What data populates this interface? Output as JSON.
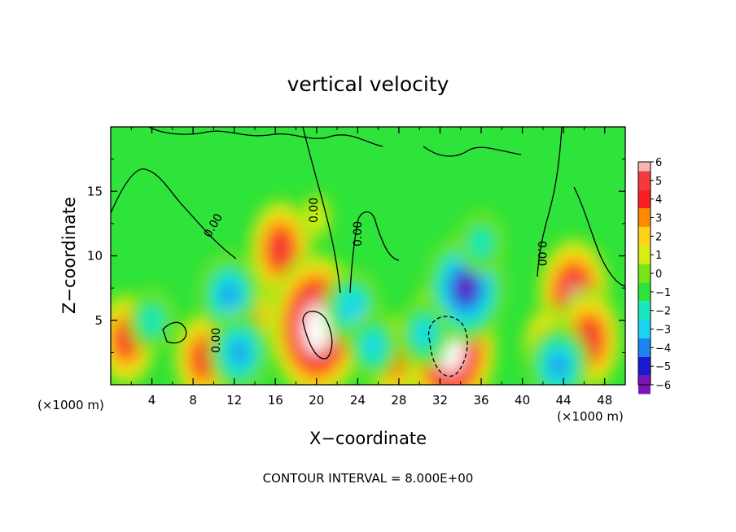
{
  "chart_data": {
    "type": "heatmap",
    "title": "vertical velocity",
    "xlabel": "X−coordinate",
    "ylabel": "Z−coordinate",
    "x_unit_left": "(×1000 m)",
    "x_unit_right": "(×1000 m)",
    "x_ticks": [
      "4",
      "8",
      "12",
      "16",
      "20",
      "24",
      "28",
      "32",
      "36",
      "40",
      "44",
      "48"
    ],
    "y_ticks": [
      "5",
      "10",
      "15"
    ],
    "xlim": [
      0,
      50
    ],
    "ylim": [
      0,
      20
    ],
    "colorbar": {
      "levels": [
        "6",
        "5",
        "4",
        "3",
        "2",
        "1",
        "0",
        "−1",
        "−2",
        "−3",
        "−4",
        "−5",
        "−6"
      ],
      "colors": [
        "#f08a8a",
        "#f43a3a",
        "#fa1e1e",
        "#ff8a00",
        "#ffd21a",
        "#d7ee12",
        "#7ae319",
        "#2ee33a",
        "#17e8c0",
        "#1ad4f2",
        "#1a84f0",
        "#1a1ad0",
        "#7a15b3"
      ],
      "top_color": "#f6b4b4"
    },
    "contour_labels": [
      "0.00",
      "0.00",
      "0.00",
      "0.00",
      "0.00"
    ],
    "field_features": [
      {
        "x": 16.5,
        "z": 10.5,
        "w": 5.5,
        "type": "updraft"
      },
      {
        "x": 20.0,
        "z": 4.5,
        "w": 9.0,
        "type": "updraft"
      },
      {
        "x": 9.0,
        "z": 2.0,
        "w": 5.0,
        "type": "updraft"
      },
      {
        "x": 13.5,
        "z": 5.0,
        "w": 4.5,
        "type": "updraft"
      },
      {
        "x": 1.5,
        "z": 3.5,
        "w": 5.0,
        "type": "updraft"
      },
      {
        "x": 27.5,
        "z": 2.0,
        "w": 4.5,
        "type": "updraft"
      },
      {
        "x": 45.0,
        "z": 7.0,
        "w": 6.5,
        "type": "updraft"
      },
      {
        "x": 46.5,
        "z": 3.5,
        "w": 5.5,
        "type": "updraft"
      },
      {
        "x": 42.5,
        "z": 3.0,
        "w": 4.0,
        "type": "updraft"
      },
      {
        "x": 33.0,
        "z": 3.0,
        "w": 9.0,
        "type": "updraft"
      },
      {
        "x": 34.5,
        "z": 7.5,
        "w": -6.0,
        "type": "downdraft"
      },
      {
        "x": 36.0,
        "z": 11.0,
        "w": -2.5,
        "type": "downdraft"
      },
      {
        "x": 11.5,
        "z": 7.0,
        "w": -4.0,
        "type": "downdraft"
      },
      {
        "x": 12.5,
        "z": 2.5,
        "w": -4.0,
        "type": "downdraft"
      },
      {
        "x": 23.5,
        "z": 6.0,
        "w": -3.5,
        "type": "downdraft"
      },
      {
        "x": 25.5,
        "z": 3.0,
        "w": -3.0,
        "type": "downdraft"
      },
      {
        "x": 4.0,
        "z": 5.0,
        "w": -2.5,
        "type": "downdraft"
      },
      {
        "x": 43.5,
        "z": 1.5,
        "w": -4.0,
        "type": "downdraft"
      },
      {
        "x": 30.5,
        "z": 4.0,
        "w": -3.0,
        "type": "downdraft"
      },
      {
        "x": 20.0,
        "z": 13.0,
        "w": 1.5,
        "type": "weak-updraft"
      }
    ]
  },
  "footer": {
    "contour_interval": "CONTOUR INTERVAL =  8.000E+00"
  }
}
